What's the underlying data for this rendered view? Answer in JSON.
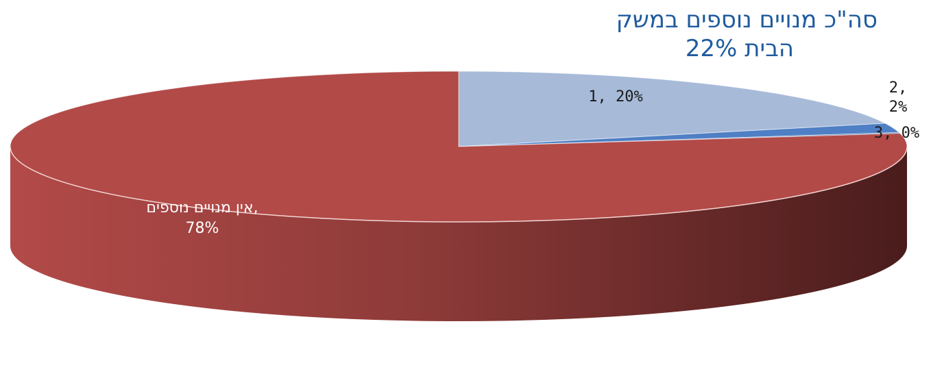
{
  "chart_data": {
    "type": "pie",
    "title": "סה\"כ מנויים נוספים במשק הבית 22%",
    "title_lines": [
      "סה\"כ מנויים נוספים במשק",
      "הבית 22%"
    ],
    "slices": [
      {
        "name": "1",
        "value": 20,
        "label_lines": [
          "1, 20%"
        ],
        "color": "#a7bad8"
      },
      {
        "name": "2",
        "value": 2,
        "label_lines": [
          "2,",
          "2%"
        ],
        "color": "#4f7fc4"
      },
      {
        "name": "3",
        "value": 0.2,
        "label_lines": [
          "3, 0%"
        ],
        "color": "#1f4f95"
      },
      {
        "name": "אין מנויים נוספים",
        "value": 77.8,
        "label_lines": [
          "אין מנויים נוספים,",
          "78%"
        ],
        "color": "#b24a48"
      }
    ],
    "style": "3d",
    "legend": "none"
  }
}
